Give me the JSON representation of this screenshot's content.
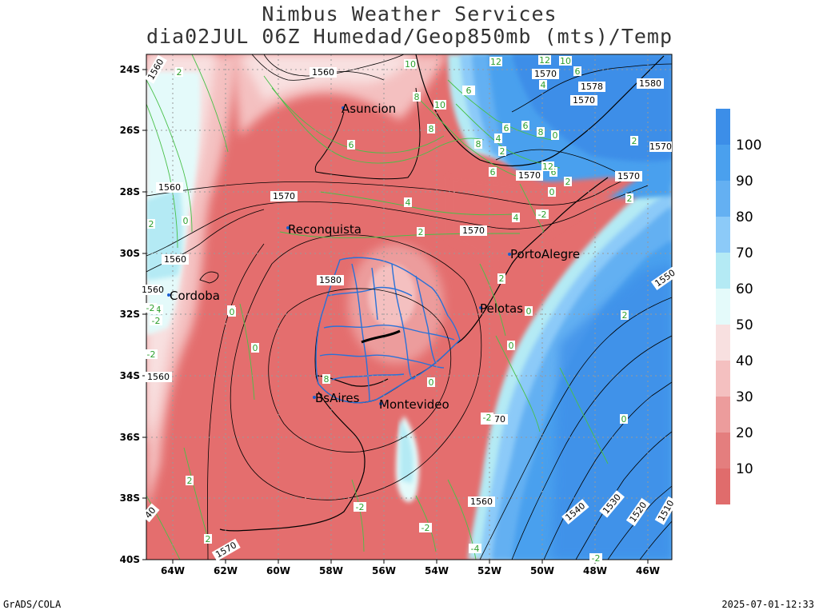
{
  "header": {
    "title_line1": "Nimbus Weather Services",
    "title_line2": "dia02JUL 06Z Humedad/Geop850mb (mts)/Temp"
  },
  "footer": {
    "left": "GrADS/COLA",
    "right": "2025-07-01-12:33"
  },
  "map": {
    "lon_labels": [
      "64W",
      "62W",
      "60W",
      "58W",
      "56W",
      "54W",
      "52W",
      "50W",
      "48W",
      "46W"
    ],
    "lat_labels": [
      "24S",
      "26S",
      "28S",
      "30S",
      "32S",
      "34S",
      "36S",
      "38S",
      "40S"
    ],
    "cities": [
      {
        "name": "Asuncion"
      },
      {
        "name": "Reconquista"
      },
      {
        "name": "PortoAlegre"
      },
      {
        "name": "Cordoba"
      },
      {
        "name": "Pelotas"
      },
      {
        "name": "BsAires"
      },
      {
        "name": "Montevideo"
      }
    ],
    "geopotential_labels": [
      "1560",
      "1570",
      "1578",
      "1570",
      "1570",
      "1570",
      "1560",
      "1570",
      "1570",
      "1560",
      "1580",
      "1560",
      "1570",
      "1560",
      "1560",
      "1540",
      "1530",
      "1520",
      "1510",
      "1550",
      "1560",
      "1570",
      "40",
      "1580",
      "1570"
    ],
    "temperature_labels": [
      "2",
      "10",
      "12",
      "12",
      "10",
      "6",
      "4",
      "8",
      "10",
      "8",
      "6",
      "6",
      "4",
      "6",
      "2",
      "6",
      "8",
      "2",
      "6",
      "4",
      "2",
      "0",
      "2",
      "4",
      "-2",
      "-4",
      "-2",
      "2",
      "2",
      "0",
      "0",
      "-2",
      "-2",
      "-4",
      "-2",
      "0",
      "2",
      "0",
      "0",
      "2",
      "0",
      "6",
      "12",
      "8",
      "0",
      "0",
      "2",
      "-2",
      "8",
      "-2",
      "-2",
      "2",
      "0",
      "2"
    ]
  },
  "colorbar": {
    "labels": [
      "100",
      "90",
      "80",
      "70",
      "60",
      "50",
      "40",
      "30",
      "20",
      "10"
    ],
    "colors": [
      "#3c8ee8",
      "#4aa0ee",
      "#64b0f2",
      "#8ccaf8",
      "#b4eaf4",
      "#e4fafa",
      "#f8e0e0",
      "#f4c0c0",
      "#ec9c9c",
      "#e47e7e",
      "#e06c6c"
    ]
  },
  "colors": {
    "high_humidity": "#3c8ee8",
    "low_humidity": "#e46e6e",
    "coast": "#000000",
    "borders": "#2a72d8",
    "temp_contours": "#48c048",
    "geop_contours": "#000000"
  }
}
